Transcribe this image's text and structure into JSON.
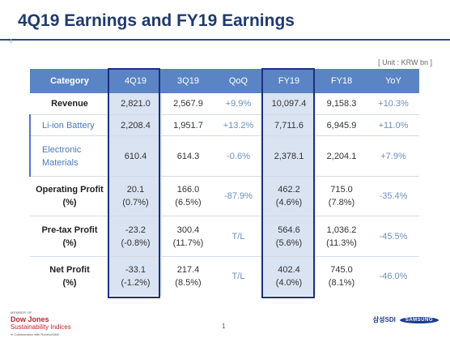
{
  "title": "4Q19 Earnings and FY19 Earnings",
  "unit": "[ Unit : KRW bn ]",
  "table": {
    "headers": [
      "Category",
      "4Q19",
      "3Q19",
      "QoQ",
      "FY19",
      "FY18",
      "YoY"
    ],
    "rows": [
      {
        "label": "Revenue",
        "q4": "2,821.0",
        "q3": "2,567.9",
        "qoq": "+9.9%",
        "fy19": "10,097.4",
        "fy18": "9,158.3",
        "yoy": "+10.3%"
      },
      {
        "label": "Li-ion Battery",
        "q4": "2,208.4",
        "q3": "1,951.7",
        "qoq": "+13.2%",
        "fy19": "7,711.6",
        "fy18": "6,945.9",
        "yoy": "+11.0%"
      },
      {
        "label_l1": "Electronic",
        "label_l2": "Materials",
        "q4": "610.4",
        "q3": "614.3",
        "qoq": "-0.6%",
        "fy19": "2,378.1",
        "fy18": "2,204.1",
        "yoy": "+7.9%"
      },
      {
        "label_l1": "Operating Profit",
        "label_l2": "(%)",
        "q4": "20.1",
        "q4p": "(0.7%)",
        "q3": "166.0",
        "q3p": "(6.5%)",
        "qoq": "-87.9%",
        "fy19": "462.2",
        "fy19p": "(4.6%)",
        "fy18": "715.0",
        "fy18p": "(7.8%)",
        "yoy": "-35.4%"
      },
      {
        "label_l1": "Pre-tax Profit",
        "label_l2": "(%)",
        "q4": "-23.2",
        "q4p": "(-0.8%)",
        "q3": "300.4",
        "q3p": "(11.7%)",
        "qoq": "T/L",
        "fy19": "564.6",
        "fy19p": "(5.6%)",
        "fy18": "1,036.2",
        "fy18p": "(11.3%)",
        "yoy": "-45.5%"
      },
      {
        "label_l1": "Net Profit",
        "label_l2": "(%)",
        "q4": "-33.1",
        "q4p": "(-1.2%)",
        "q3": "217.4",
        "q3p": "(8.5%)",
        "qoq": "T/L",
        "fy19": "402.4",
        "fy19p": "(4.0%)",
        "fy18": "745.0",
        "fy18p": "(8.1%)",
        "yoy": "-46.0%"
      }
    ]
  },
  "footer": {
    "dji_l1": "MEMBER OF",
    "dji_l2": "Dow Jones",
    "dji_l3": "Sustainability Indices",
    "dji_l4": "In Collaboration with RobecoSAM",
    "page": "1",
    "brand_sdi": "삼성SDI",
    "brand_samsung": "SAMSUNG"
  },
  "colors": {
    "header_bg": "#5b84c4",
    "title": "#1f3a6e",
    "highlight_frame": "#1e2f82",
    "sub_label": "#4a78c0"
  }
}
